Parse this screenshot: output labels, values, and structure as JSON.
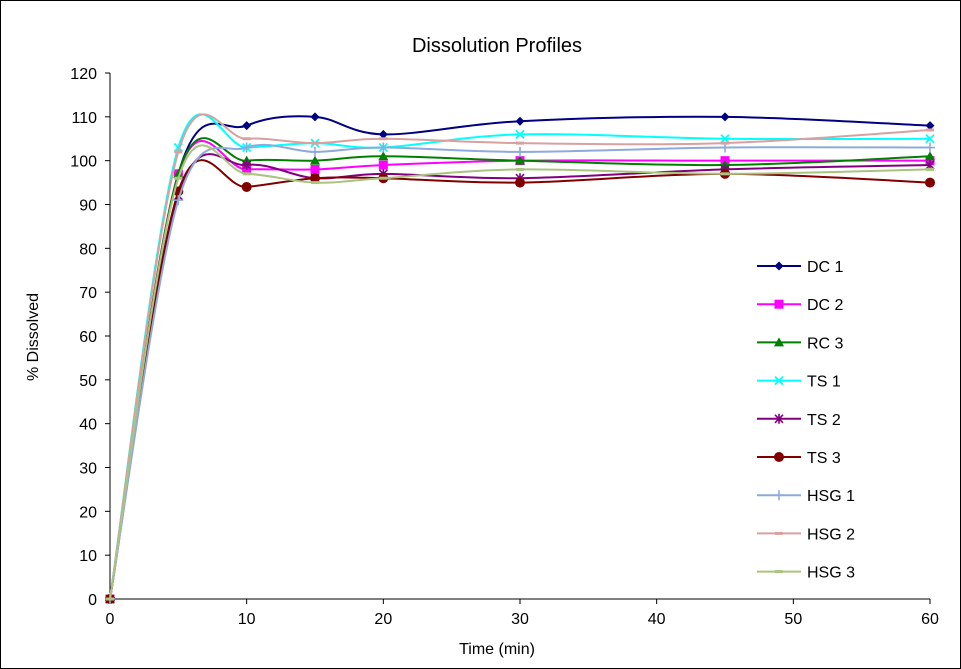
{
  "chart_data": {
    "type": "line",
    "title": "Dissolution Profiles",
    "xlabel": "Time (min)",
    "ylabel": "% Dissolved",
    "xlim": [
      0,
      60
    ],
    "ylim": [
      0,
      120
    ],
    "xticks": [
      0,
      10,
      20,
      30,
      40,
      50,
      60
    ],
    "yticks": [
      0,
      10,
      20,
      30,
      40,
      50,
      60,
      70,
      80,
      90,
      100,
      110,
      120
    ],
    "grid": false,
    "legend_position": "right",
    "x": [
      0,
      5,
      10,
      15,
      20,
      30,
      45,
      60
    ],
    "series": [
      {
        "name": "DC 1",
        "color": "#000080",
        "marker": "diamond",
        "values": [
          0,
          97,
          108,
          110,
          106,
          109,
          110,
          108
        ]
      },
      {
        "name": "DC 2",
        "color": "#FF00FF",
        "marker": "square",
        "values": [
          0,
          97,
          98,
          98,
          99,
          100,
          100,
          100
        ]
      },
      {
        "name": "RC 3",
        "color": "#008000",
        "marker": "triangle",
        "values": [
          0,
          97,
          100,
          100,
          101,
          100,
          99,
          101
        ]
      },
      {
        "name": "TS 1",
        "color": "#00FFFF",
        "marker": "x",
        "values": [
          0,
          103,
          103,
          104,
          103,
          106,
          105,
          105
        ]
      },
      {
        "name": "TS 2",
        "color": "#800080",
        "marker": "star",
        "values": [
          0,
          92,
          99,
          96,
          97,
          96,
          98,
          99
        ]
      },
      {
        "name": "TS 3",
        "color": "#800000",
        "marker": "circle",
        "values": [
          0,
          93,
          94,
          96,
          96,
          95,
          97,
          95
        ]
      },
      {
        "name": "HSG 1",
        "color": "#8EA9DB",
        "marker": "plus",
        "values": [
          0,
          91,
          103,
          102,
          103,
          102,
          103,
          103
        ]
      },
      {
        "name": "HSG 2",
        "color": "#D9A0A0",
        "marker": "dash",
        "values": [
          0,
          102,
          105,
          104,
          105,
          104,
          104,
          107
        ]
      },
      {
        "name": "HSG 3",
        "color": "#A9C47F",
        "marker": "dash",
        "values": [
          0,
          96,
          97,
          95,
          96,
          98,
          97,
          98
        ]
      }
    ]
  }
}
